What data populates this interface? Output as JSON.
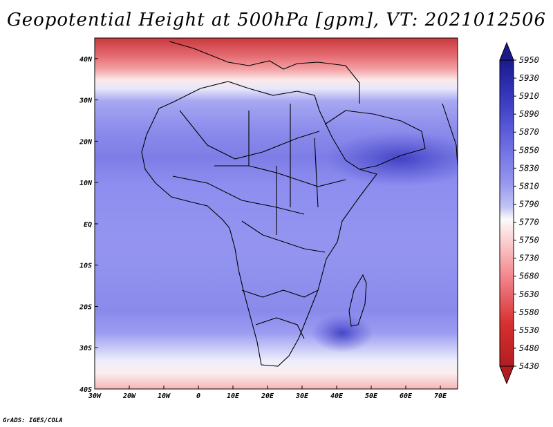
{
  "title": "Geopotential Height at 500hPa [gpm], VT: 2021012506",
  "credit": "GrADS: IGES/COLA",
  "colors": {
    "bands": [
      "#b21d21",
      "#d73030",
      "#e8545a",
      "#f07f86",
      "#f6a5a9",
      "#fbcaca",
      "#fde8e8",
      "#fbfbfb",
      "#e3e3fb",
      "#c3c3f6",
      "#a8a8f4",
      "#9696ef",
      "#8484ea",
      "#7373e5",
      "#6262dc",
      "#5151d4",
      "#4141c7",
      "#3232b8",
      "#2525a4",
      "#1a1a8c"
    ],
    "accent": "#000000"
  },
  "map": {
    "region": "Africa",
    "projection": "latlon",
    "lon_range": [
      -30,
      75
    ],
    "lat_range": [
      -40,
      45
    ],
    "x_ticks": [
      "30W",
      "20W",
      "10W",
      "0",
      "10E",
      "20E",
      "30E",
      "40E",
      "50E",
      "60E",
      "70E"
    ],
    "y_ticks": [
      "40N",
      "30N",
      "20N",
      "10N",
      "EQ",
      "10S",
      "20S",
      "30S",
      "40S"
    ]
  },
  "colorbar": {
    "levels": [
      "5950",
      "5930",
      "5910",
      "5890",
      "5870",
      "5850",
      "5830",
      "5810",
      "5790",
      "5770",
      "5750",
      "5730",
      "5680",
      "5630",
      "5580",
      "5530",
      "5480",
      "5430"
    ]
  }
}
